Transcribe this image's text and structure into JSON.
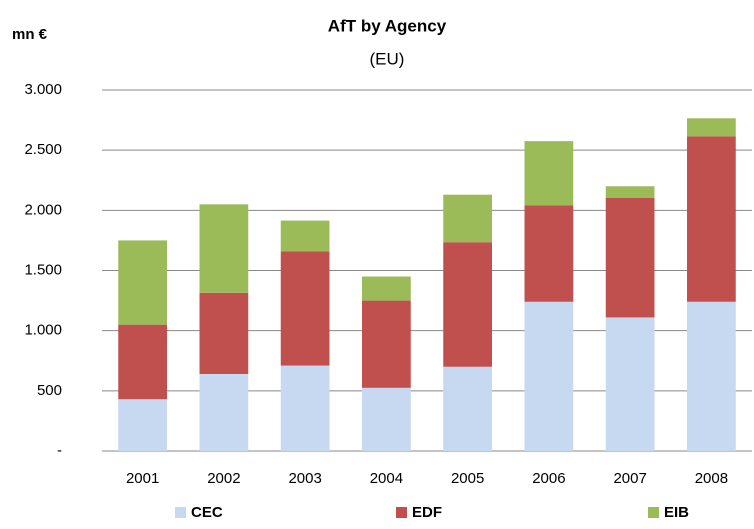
{
  "chart_data": {
    "type": "stacked_bar",
    "title": "AfT by Agency",
    "subtitle": "(EU)",
    "y_label": "mn €",
    "categories": [
      "2001",
      "2002",
      "2003",
      "2004",
      "2005",
      "2006",
      "2007",
      "2008"
    ],
    "series": [
      {
        "name": "CEC",
        "color": "#c6d9f1",
        "values": [
          430,
          640,
          710,
          525,
          700,
          1240,
          1110,
          1240
        ]
      },
      {
        "name": "EDF",
        "color": "#c0504d",
        "values": [
          620,
          675,
          950,
          725,
          1035,
          800,
          995,
          1375
        ]
      },
      {
        "name": "EIB",
        "color": "#9bbb59",
        "values": [
          700,
          735,
          255,
          200,
          395,
          535,
          95,
          150
        ]
      }
    ],
    "ylim": [
      0,
      3000
    ],
    "yticks": [
      {
        "value": 0,
        "label": "-"
      },
      500,
      {
        "value": 1000,
        "label": "1.000"
      },
      {
        "value": 1500,
        "label": "1.500"
      },
      {
        "value": 2000,
        "label": "2.000"
      },
      {
        "value": 2500,
        "label": "2.500"
      },
      {
        "value": 3000,
        "label": "3.000"
      }
    ],
    "grid": true,
    "legend": "bottom"
  }
}
